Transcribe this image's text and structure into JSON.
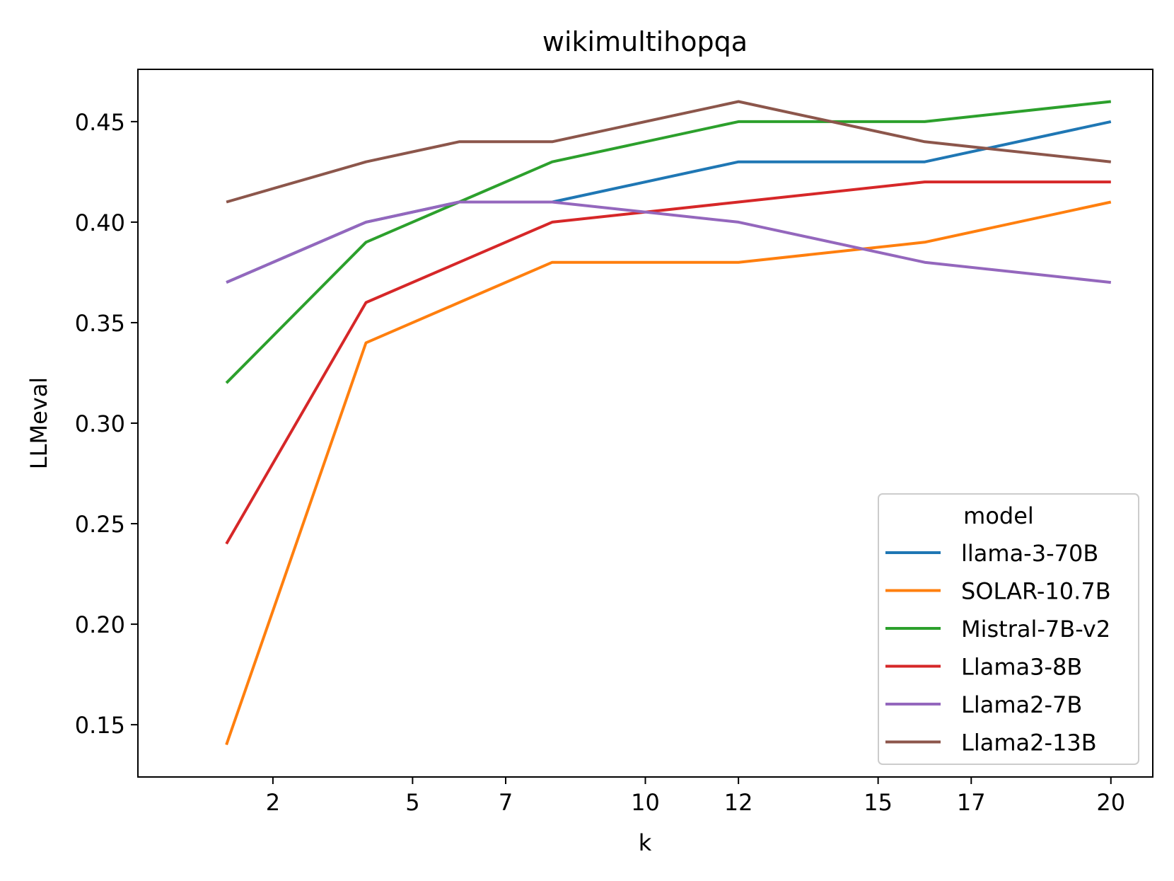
{
  "chart_data": {
    "type": "line",
    "title": "wikimultihopqa",
    "xlabel": "k",
    "ylabel": "LLMeval",
    "x": [
      1,
      4,
      6,
      8,
      12,
      16,
      20
    ],
    "x_ticks": [
      2,
      5,
      7,
      10,
      12,
      15,
      17,
      20
    ],
    "xlim": [
      -0.9,
      20.9
    ],
    "ylim": [
      0.124,
      0.476
    ],
    "y_ticks": [
      "0.15",
      "0.20",
      "0.25",
      "0.30",
      "0.35",
      "0.40",
      "0.45"
    ],
    "grid": false,
    "legend": {
      "title": "model",
      "position": "lower-right"
    },
    "series": [
      {
        "name": "llama-3-70B",
        "color": "#1f77b4",
        "values": [
          0.37,
          0.4,
          0.41,
          0.41,
          0.43,
          0.43,
          0.45
        ]
      },
      {
        "name": "SOLAR-10.7B",
        "color": "#ff7f0e",
        "values": [
          0.14,
          0.34,
          0.36,
          0.38,
          0.38,
          0.39,
          0.41
        ]
      },
      {
        "name": "Mistral-7B-v2",
        "color": "#2ca02c",
        "values": [
          0.32,
          0.39,
          0.41,
          0.43,
          0.45,
          0.45,
          0.46
        ]
      },
      {
        "name": "Llama3-8B",
        "color": "#d62728",
        "values": [
          0.24,
          0.36,
          0.38,
          0.4,
          0.41,
          0.42,
          0.42
        ]
      },
      {
        "name": "Llama2-7B",
        "color": "#9467bd",
        "values": [
          0.37,
          0.4,
          0.41,
          0.41,
          0.4,
          0.38,
          0.37
        ]
      },
      {
        "name": "Llama2-13B",
        "color": "#8c564b",
        "values": [
          0.41,
          0.43,
          0.44,
          0.44,
          0.46,
          0.44,
          0.43
        ]
      }
    ]
  }
}
